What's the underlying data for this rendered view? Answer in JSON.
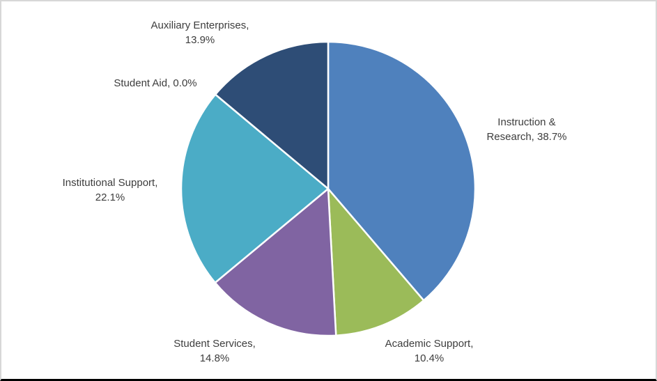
{
  "chart_data": {
    "type": "pie",
    "start_at_top_clockwise": true,
    "unit": "%",
    "slice_border_color": "#ffffff",
    "label_color": "#3d3d3d",
    "categories": [
      "Instruction & Research",
      "Academic Support",
      "Student Services",
      "Institutional Support",
      "Student Aid",
      "Auxiliary Enterprises"
    ],
    "values": [
      38.7,
      10.4,
      14.8,
      22.1,
      0.0,
      13.9
    ],
    "slices": [
      {
        "name": "Instruction & Research",
        "value": 38.7,
        "color": "#4F81BD",
        "label_line1": "Instruction &",
        "label_line2": "Research, 38.7%"
      },
      {
        "name": "Academic Support",
        "value": 10.4,
        "color": "#9BBB59",
        "label_line1": "Academic Support,",
        "label_line2": "10.4%"
      },
      {
        "name": "Student Services",
        "value": 14.8,
        "color": "#8064A2",
        "label_line1": "Student Services,",
        "label_line2": "14.8%"
      },
      {
        "name": "Institutional Support",
        "value": 22.1,
        "color": "#4BACC6",
        "label_line1": "Institutional Support,",
        "label_line2": "22.1%"
      },
      {
        "name": "Student Aid",
        "value": 0.0,
        "color": "#4BACC6",
        "label_line1": "Student Aid, 0.0%",
        "label_line2": ""
      },
      {
        "name": "Auxiliary Enterprises",
        "value": 13.9,
        "color": "#2E4D76",
        "label_line1": "Auxiliary Enterprises,",
        "label_line2": "13.9%"
      }
    ]
  }
}
